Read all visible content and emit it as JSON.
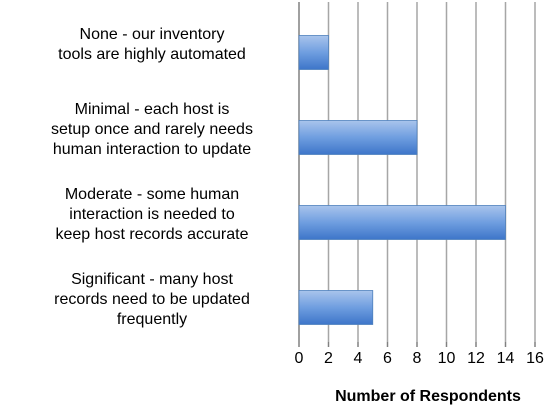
{
  "chart_data": {
    "type": "barh",
    "categories": [
      "None - our inventory\ntools are highly automated",
      "Minimal - each host is\nsetup once and rarely needs\nhuman interaction to update",
      "Moderate - some human\ninteraction is needed to\nkeep host records accurate",
      "Significant - many host\nrecords need to be updated\nfrequently"
    ],
    "values": [
      2,
      8,
      14,
      5
    ],
    "color": "#4f81bd",
    "xlabel": "Number of Respondents",
    "xlim": [
      0,
      16
    ],
    "xticks": [
      0,
      2,
      4,
      6,
      8,
      10,
      12,
      14,
      16
    ],
    "grid": true
  }
}
